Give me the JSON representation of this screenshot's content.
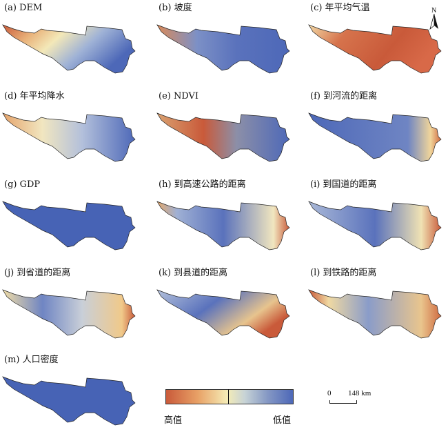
{
  "panels": [
    {
      "label": "(a) DEM",
      "fill": "url(#g-dem)"
    },
    {
      "label": "(b) 坡度",
      "fill": "url(#g-slope)"
    },
    {
      "label": "(c) 年平均气温",
      "fill": "url(#g-temp)"
    },
    {
      "label": "(d) 年平均降水",
      "fill": "url(#g-prec)"
    },
    {
      "label": "(e) NDVI",
      "fill": "url(#g-ndvi)"
    },
    {
      "label": "(f) 到河流的距离",
      "fill": "url(#g-river)"
    },
    {
      "label": "(g) GDP",
      "fill": "#4763b5"
    },
    {
      "label": "(h) 到高速公路的距离",
      "fill": "url(#g-hwy)"
    },
    {
      "label": "(i) 到国道的距离",
      "fill": "url(#g-nat)"
    },
    {
      "label": "(j) 到省道的距离",
      "fill": "url(#g-prov)"
    },
    {
      "label": "(k) 到县道的距离",
      "fill": "url(#g-county)"
    },
    {
      "label": "(l) 到铁路的距离",
      "fill": "url(#g-rail)"
    },
    {
      "label": "(m) 人口密度",
      "fill": "#4763b5"
    }
  ],
  "north_arrow": {
    "letter": "N"
  },
  "legend": {
    "high": "高值",
    "low": "低值"
  },
  "scalebar": {
    "zero": "0",
    "distance": "148 km"
  },
  "colors": {
    "high": "#c95a3a",
    "mid": "#f5ecb6",
    "low": "#4d68b8"
  }
}
